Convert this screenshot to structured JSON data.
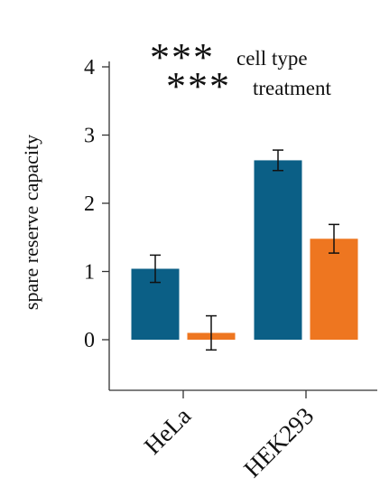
{
  "chart_data": {
    "type": "bar",
    "ylabel": "spare reserve capacity",
    "xlabel": "",
    "categories": [
      "HeLa",
      "HEK293"
    ],
    "series": [
      {
        "color": "#0b5f86",
        "values": [
          1.04,
          2.63
        ],
        "errors": [
          0.2,
          0.15
        ]
      },
      {
        "color": "#ee7620",
        "values": [
          0.1,
          1.48
        ],
        "errors": [
          0.25,
          0.21
        ]
      }
    ],
    "ylim": [
      -0.75,
      4.15
    ],
    "yticks": [
      "0",
      "1",
      "2",
      "3",
      "4"
    ],
    "grid": false,
    "annotations": [
      {
        "stars": "***",
        "text": "cell type"
      },
      {
        "stars": "***",
        "text": "treatment"
      }
    ]
  }
}
